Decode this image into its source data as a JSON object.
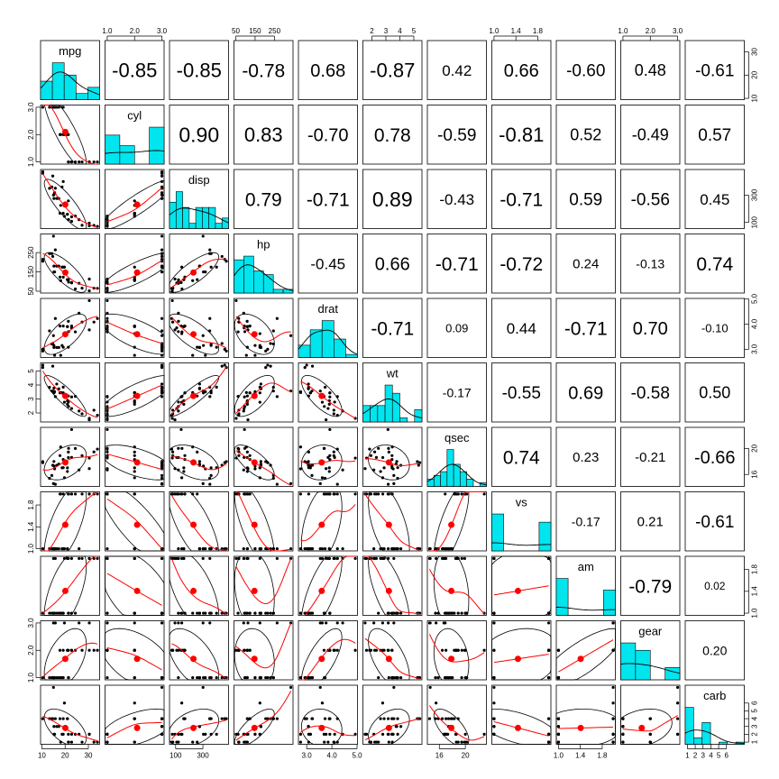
{
  "chart_data": {
    "type": "scatter",
    "variables": [
      "mpg",
      "cyl",
      "disp",
      "hp",
      "drat",
      "wt",
      "qsec",
      "vs",
      "am",
      "gear",
      "carb"
    ],
    "ranges": [
      [
        10.4,
        33.9
      ],
      [
        4,
        8
      ],
      [
        71.1,
        472
      ],
      [
        52,
        335
      ],
      [
        2.76,
        4.93
      ],
      [
        1.513,
        5.424
      ],
      [
        14.5,
        22.9
      ],
      [
        0,
        1
      ],
      [
        0,
        1
      ],
      [
        3,
        5
      ],
      [
        1,
        8
      ]
    ],
    "axis_ticks": {
      "mpg": {
        "values": [
          10,
          20,
          30
        ],
        "labels": [
          "10",
          "20",
          "30"
        ]
      },
      "cyl": {
        "values": [
          4,
          6,
          8
        ],
        "labels": [
          "1.0",
          "2.0",
          "3.0"
        ]
      },
      "disp": {
        "values": [
          100,
          300
        ],
        "labels": [
          "100",
          "300"
        ]
      },
      "disp_top": {
        "values": [
          50,
          150,
          250
        ],
        "labels": [
          "50",
          "150",
          "250"
        ]
      },
      "hp": {
        "values": [
          50,
          150,
          250
        ],
        "labels": [
          "50",
          "150",
          "250"
        ]
      },
      "drat": {
        "values": [
          3.0,
          4.0,
          5.0
        ],
        "labels": [
          "3.0",
          "4.0",
          "5.0"
        ]
      },
      "wt": {
        "values": [
          2,
          3,
          4,
          5
        ],
        "labels": [
          "2",
          "3",
          "4",
          "5"
        ]
      },
      "qsec": {
        "values": [
          16,
          20
        ],
        "labels": [
          "16",
          "20"
        ]
      },
      "vs": {
        "values": [
          0,
          0.4,
          0.8
        ],
        "labels": [
          "1.0",
          "1.4",
          "1.8"
        ]
      },
      "am": {
        "values": [
          0,
          0.4,
          0.8
        ],
        "labels": [
          "1.0",
          "1.4",
          "1.8"
        ]
      },
      "gear": {
        "values": [
          3,
          4,
          5
        ],
        "labels": [
          "1.0",
          "2.0",
          "3.0"
        ]
      },
      "carb": {
        "values": [
          1,
          2,
          3,
          4,
          5,
          6
        ],
        "labels": [
          "1",
          "2",
          "3",
          "4",
          "5",
          "6"
        ]
      }
    },
    "correlations": [
      [
        "",
        "-0.85",
        "-0.85",
        "-0.78",
        "0.68",
        "-0.87",
        "0.42",
        "0.66",
        "-0.60",
        "0.48",
        "-0.61"
      ],
      [
        "",
        "",
        "0.90",
        "0.83",
        "-0.70",
        "0.78",
        "-0.59",
        "-0.81",
        "0.52",
        "-0.49",
        "0.57"
      ],
      [
        "",
        "",
        "",
        "0.79",
        "-0.71",
        "0.89",
        "-0.43",
        "-0.71",
        "0.59",
        "-0.56",
        "0.45"
      ],
      [
        "",
        "",
        "",
        "",
        "-0.45",
        "0.66",
        "-0.71",
        "-0.72",
        "0.24",
        "-0.13",
        "0.74"
      ],
      [
        "",
        "",
        "",
        "",
        "",
        "-0.71",
        "0.09",
        "0.44",
        "-0.71",
        "0.70",
        "-0.10"
      ],
      [
        "",
        "",
        "",
        "",
        "",
        "",
        "-0.17",
        "-0.55",
        "0.69",
        "-0.58",
        "0.50"
      ],
      [
        "",
        "",
        "",
        "",
        "",
        "",
        "",
        "0.74",
        "0.23",
        "-0.21",
        "-0.66"
      ],
      [
        "",
        "",
        "",
        "",
        "",
        "",
        "",
        "",
        "-0.17",
        "0.21",
        "-0.61"
      ],
      [
        "",
        "",
        "",
        "",
        "",
        "",
        "",
        "",
        "",
        "-0.79",
        "0.02"
      ],
      [
        "",
        "",
        "",
        "",
        "",
        "",
        "",
        "",
        "",
        "",
        "0.20"
      ],
      [
        "",
        "",
        "",
        "",
        "",
        "",
        "",
        "",
        "",
        "",
        ""
      ]
    ],
    "observations": [
      [
        21.0,
        6,
        160.0,
        110,
        3.9,
        2.62,
        16.46,
        0,
        1,
        4,
        4
      ],
      [
        21.0,
        6,
        160.0,
        110,
        3.9,
        2.875,
        17.02,
        0,
        1,
        4,
        4
      ],
      [
        22.8,
        4,
        108.0,
        93,
        3.85,
        2.32,
        18.61,
        1,
        1,
        4,
        1
      ],
      [
        21.4,
        6,
        258.0,
        110,
        3.08,
        3.215,
        19.44,
        1,
        0,
        3,
        1
      ],
      [
        18.7,
        8,
        360.0,
        175,
        3.15,
        3.44,
        17.02,
        0,
        0,
        3,
        2
      ],
      [
        18.1,
        6,
        225.0,
        105,
        2.76,
        3.46,
        20.22,
        1,
        0,
        3,
        1
      ],
      [
        14.3,
        8,
        360.0,
        245,
        3.21,
        3.57,
        15.84,
        0,
        0,
        3,
        4
      ],
      [
        24.4,
        4,
        146.7,
        62,
        3.69,
        3.19,
        20.0,
        1,
        0,
        4,
        2
      ],
      [
        22.8,
        4,
        140.8,
        95,
        3.92,
        3.15,
        22.9,
        1,
        0,
        4,
        2
      ],
      [
        19.2,
        6,
        167.6,
        123,
        3.92,
        3.44,
        18.3,
        1,
        0,
        4,
        4
      ],
      [
        17.8,
        6,
        167.6,
        123,
        3.92,
        3.44,
        18.9,
        1,
        0,
        4,
        4
      ],
      [
        16.4,
        8,
        275.8,
        180,
        3.07,
        4.07,
        17.4,
        0,
        0,
        3,
        3
      ],
      [
        17.3,
        8,
        275.8,
        180,
        3.07,
        3.73,
        17.6,
        0,
        0,
        3,
        3
      ],
      [
        15.2,
        8,
        275.8,
        180,
        3.07,
        3.78,
        18.0,
        0,
        0,
        3,
        3
      ],
      [
        10.4,
        8,
        472.0,
        205,
        2.93,
        5.25,
        17.98,
        0,
        0,
        3,
        4
      ],
      [
        10.4,
        8,
        460.0,
        215,
        3.0,
        5.424,
        17.82,
        0,
        0,
        3,
        4
      ],
      [
        14.7,
        8,
        440.0,
        230,
        3.23,
        5.345,
        17.42,
        0,
        0,
        3,
        4
      ],
      [
        32.4,
        4,
        78.7,
        66,
        4.08,
        2.2,
        19.47,
        1,
        1,
        4,
        1
      ],
      [
        30.4,
        4,
        75.7,
        52,
        4.93,
        1.615,
        18.52,
        1,
        1,
        4,
        2
      ],
      [
        33.9,
        4,
        71.1,
        65,
        4.22,
        1.835,
        19.9,
        1,
        1,
        4,
        1
      ],
      [
        21.5,
        4,
        120.1,
        97,
        3.7,
        2.465,
        20.01,
        1,
        0,
        3,
        1
      ],
      [
        15.5,
        8,
        318.0,
        150,
        2.76,
        3.52,
        16.87,
        0,
        0,
        3,
        2
      ],
      [
        15.2,
        8,
        304.0,
        150,
        3.15,
        3.435,
        17.3,
        0,
        0,
        3,
        2
      ],
      [
        13.3,
        8,
        350.0,
        245,
        3.73,
        3.84,
        15.41,
        0,
        0,
        3,
        4
      ],
      [
        19.2,
        8,
        400.0,
        175,
        3.08,
        3.845,
        17.05,
        0,
        0,
        3,
        2
      ],
      [
        27.3,
        4,
        79.0,
        66,
        4.08,
        1.935,
        18.9,
        1,
        1,
        4,
        1
      ],
      [
        26.0,
        4,
        120.3,
        91,
        4.43,
        2.14,
        16.7,
        0,
        1,
        5,
        2
      ],
      [
        30.4,
        4,
        95.1,
        113,
        3.77,
        1.513,
        16.9,
        1,
        1,
        5,
        2
      ],
      [
        15.8,
        8,
        351.0,
        264,
        4.22,
        3.17,
        14.5,
        0,
        1,
        5,
        4
      ],
      [
        19.7,
        6,
        145.0,
        175,
        3.62,
        2.77,
        15.5,
        0,
        1,
        5,
        6
      ],
      [
        15.0,
        8,
        301.0,
        335,
        3.54,
        3.57,
        14.6,
        0,
        1,
        5,
        8
      ],
      [
        21.4,
        4,
        121.0,
        109,
        4.11,
        2.78,
        18.6,
        1,
        1,
        4,
        2
      ]
    ],
    "histogram_breaks": {
      "mpg": [
        10,
        15,
        20,
        25,
        30,
        35
      ],
      "cyl": [
        4,
        5,
        6,
        7,
        8
      ],
      "disp": [
        50,
        100,
        150,
        200,
        250,
        300,
        350,
        400,
        450,
        500
      ],
      "hp": [
        50,
        100,
        150,
        200,
        250,
        300,
        350
      ],
      "drat": [
        2.5,
        3.0,
        3.5,
        4.0,
        4.5,
        5.0
      ],
      "wt": [
        1.5,
        2.0,
        2.5,
        3.0,
        3.5,
        4.0,
        4.5,
        5.0,
        5.5
      ],
      "qsec": [
        14,
        15,
        16,
        17,
        18,
        19,
        20,
        21,
        22,
        23
      ],
      "vs": [
        0,
        0.2,
        0.4,
        0.6,
        0.8,
        1.0
      ],
      "am": [
        0,
        0.2,
        0.4,
        0.6,
        0.8,
        1.0
      ],
      "gear": [
        3,
        3.5,
        4,
        4.5,
        5
      ],
      "carb": [
        1,
        2,
        3,
        4,
        5,
        6,
        7,
        8
      ]
    },
    "colors": {
      "histogram_fill": "#00e5ee",
      "points": "#000000",
      "smooth_line": "#ff0000",
      "mean_point": "#ff0000",
      "ellipse": "#000000",
      "frame": "#000000"
    },
    "grid": false,
    "legend": "none"
  }
}
